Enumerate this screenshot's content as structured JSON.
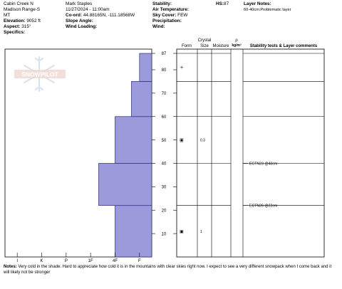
{
  "header": {
    "location": "Cabin Creek N",
    "range": "Madison Range-S",
    "state": "MT",
    "elevation_label": "Elevation:",
    "elevation_value": "9052 ft",
    "aspect_label": "Aspect:",
    "aspect_value": "315°",
    "specifics_label": "Specifics:",
    "observer": "Mark Staples",
    "datetime": "11/27/2024 - 11:00am",
    "coord_label": "Co-ord:",
    "coord_value": "44.88165N, -111.18568W",
    "slope_label": "Slope Angle:",
    "wind_loading_label": "Wind Loading:",
    "stability_label": "Stability:",
    "air_temp_label": "Air Temperature:",
    "sky_label": "Sky Cover:",
    "sky_value": "FEW",
    "precip_label": "Precipitation:",
    "wind_label": "Wind:",
    "hs_label": "HS:",
    "hs_value": "87",
    "layer_notes_label": "Layer Notes:",
    "layer_note": "60-40cm:Problematic layer"
  },
  "logo_text": "SNOWPILOT",
  "columns": {
    "crystal": "Crystal",
    "form": "Form",
    "size": "Size",
    "moisture": "Moisture",
    "rho": "ρ",
    "rho_unit": "kg/m³",
    "stability_comments": "Stability tests & Layer comments"
  },
  "chart_data": {
    "type": "bar",
    "hardness_ticks": [
      "I",
      "K",
      "P",
      "1F",
      "4F",
      "F"
    ],
    "height_ticks": [
      10,
      20,
      30,
      40,
      50,
      60,
      70,
      80,
      87
    ],
    "ylim": [
      0,
      87
    ],
    "layers": [
      {
        "bottom": 0,
        "top": 22,
        "hardness": "4F"
      },
      {
        "bottom": 22,
        "top": 40,
        "hardness": "1F-"
      },
      {
        "bottom": 40,
        "top": 60,
        "hardness": "4F"
      },
      {
        "bottom": 60,
        "top": 75,
        "hardness": "F+"
      },
      {
        "bottom": 75,
        "top": 87,
        "hardness": "F"
      }
    ],
    "grains": [
      {
        "height": 81,
        "symbol": "+",
        "size": ""
      },
      {
        "height": 50,
        "symbol": "▣",
        "size": "0.3"
      },
      {
        "height": 11,
        "symbol": "▣",
        "size": "1"
      }
    ],
    "layer_lines": [
      87,
      75,
      60,
      40,
      22
    ],
    "tests": [
      {
        "height": 40,
        "label": "ECTN23 @40cm"
      },
      {
        "height": 22,
        "label": "ECTN26 @22cm"
      }
    ]
  },
  "notes": {
    "label": "Notes:",
    "text": "Very cold in the shade. Hard to appreciate how cold it is in the mountains with clear skies right now. I expect to see a very different snowpack when I come back and it will likely not be stronger"
  }
}
